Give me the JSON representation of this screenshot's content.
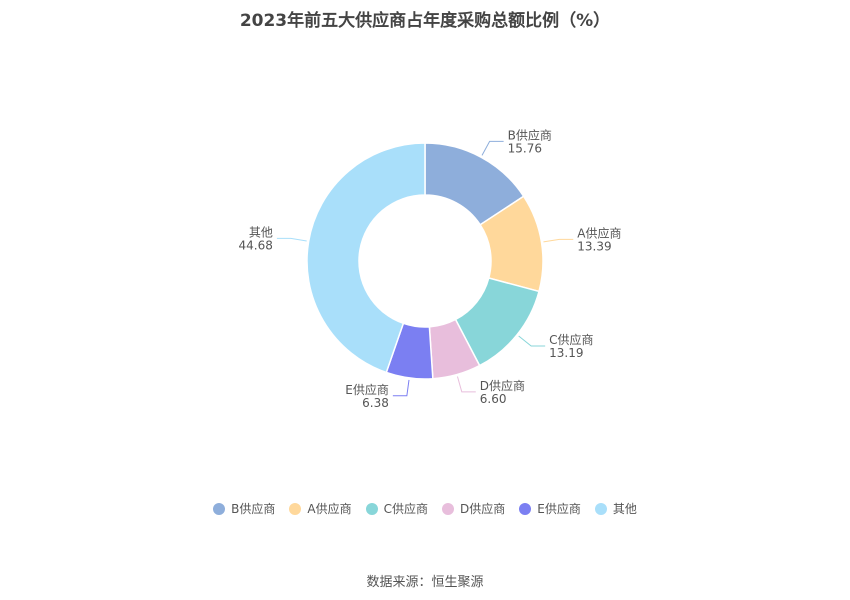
{
  "chart_data": {
    "type": "pie",
    "title": "2023年前五大供应商占年度采购总额比例（%）",
    "slices": [
      {
        "name": "B供应商",
        "value": 15.76,
        "label": "15.76",
        "color": "#8eaedb"
      },
      {
        "name": "A供应商",
        "value": 13.39,
        "label": "13.39",
        "color": "#ffd89b"
      },
      {
        "name": "C供应商",
        "value": 13.19,
        "label": "13.19",
        "color": "#88d6d9"
      },
      {
        "name": "D供应商",
        "value": 6.6,
        "label": "6.60",
        "color": "#e8bedc"
      },
      {
        "name": "E供应商",
        "value": 6.38,
        "label": "6.38",
        "color": "#7b7ff2"
      },
      {
        "name": "其他",
        "value": 44.68,
        "label": "44.68",
        "color": "#a9dffa"
      }
    ],
    "legend_position": "bottom"
  },
  "source": "数据来源：恒生聚源"
}
